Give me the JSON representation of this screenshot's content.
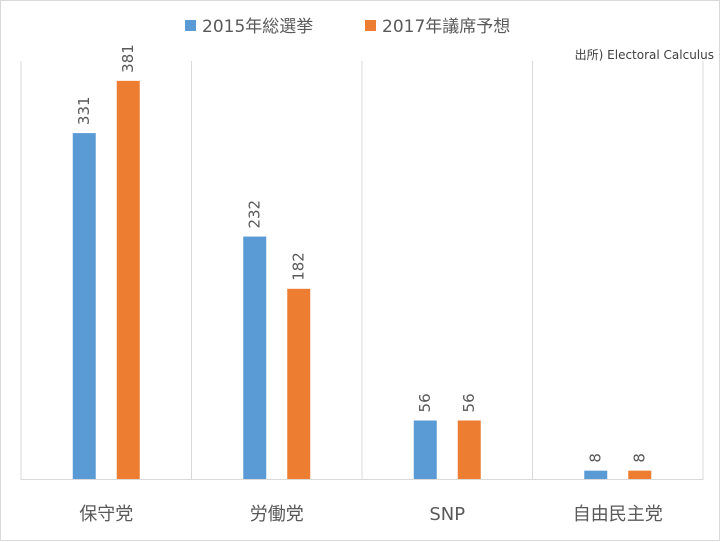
{
  "chart_data": {
    "type": "bar",
    "categories": [
      "保守党",
      "労働党",
      "SNP",
      "自由民主党"
    ],
    "series": [
      {
        "name": "2015年総選挙",
        "values": [
          331,
          232,
          56,
          8
        ],
        "color": "#5b9bd5"
      },
      {
        "name": "2017年議席予想",
        "values": [
          381,
          182,
          56,
          8
        ],
        "color": "#ed7d31"
      }
    ],
    "ylim": [
      0,
      400
    ],
    "source": "出所) Electoral Calculus",
    "legend_position": "top-center",
    "grid": false,
    "category_separators": true,
    "data_labels": true
  }
}
